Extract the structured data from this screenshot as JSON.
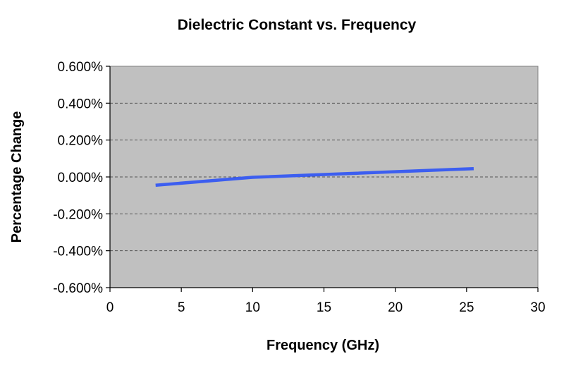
{
  "chart_data": {
    "type": "line",
    "title": "Dielectric Constant vs. Frequency",
    "xlabel": "Frequency  (GHz)",
    "ylabel": "Percentage  Change",
    "xlim": [
      0,
      30
    ],
    "ylim": [
      -0.6,
      0.6
    ],
    "x_ticks": [
      0,
      5,
      10,
      15,
      20,
      25,
      30
    ],
    "x_tick_labels": [
      "0",
      "5",
      "10",
      "15",
      "20",
      "25",
      "30"
    ],
    "y_ticks": [
      0.6,
      0.4,
      0.2,
      0.0,
      -0.2,
      -0.4,
      -0.6
    ],
    "y_tick_labels": [
      "0.600%",
      "0.400%",
      "0.200%",
      "0.000%",
      "-0.200%",
      "-0.400%",
      "-0.600%"
    ],
    "grid": "horizontal dashed",
    "legend": "none",
    "series": [
      {
        "x": [
          3.2,
          10,
          25.5
        ],
        "y": [
          -0.045,
          -0.002,
          0.045
        ]
      }
    ],
    "colors": {
      "plot_background": "#c0c0c0",
      "line": "#3c5ef0",
      "grid": "#555555",
      "axis": "#000000"
    }
  }
}
